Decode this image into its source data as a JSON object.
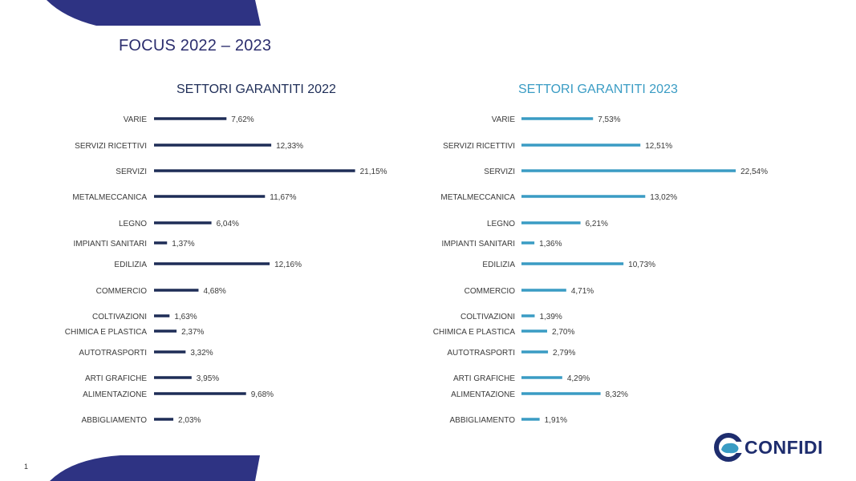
{
  "page": {
    "title": "FOCUS 2022 – 2023",
    "page_number": "1",
    "logo_text": "CONFIDI"
  },
  "colors": {
    "bar_2022": "#1e2d57",
    "bar_2023": "#3a9cc4",
    "decoration": "#2e3383"
  },
  "chart_data": [
    {
      "type": "bar",
      "orientation": "horizontal",
      "title": "SETTORI GARANTITI 2022",
      "categories": [
        "VARIE",
        "SERVIZI RICETTIVI",
        "SERVIZI",
        "METALMECCANICA",
        "LEGNO",
        "IMPIANTI SANITARI",
        "EDILIZIA",
        "COMMERCIO",
        "COLTIVAZIONI",
        "CHIMICA E PLASTICA",
        "AUTOTRASPORTI",
        "ARTI GRAFICHE",
        "ALIMENTAZIONE",
        "ABBIGLIAMENTO"
      ],
      "values": [
        7.62,
        12.33,
        21.15,
        11.67,
        6.04,
        1.37,
        12.16,
        4.68,
        1.63,
        2.37,
        3.32,
        3.95,
        9.68,
        2.03
      ],
      "labels": [
        "7,62%",
        "12,33%",
        "21,15%",
        "11,67%",
        "6,04%",
        "1,37%",
        "12,16%",
        "4,68%",
        "1,63%",
        "2,37%",
        "3,32%",
        "3,95%",
        "9,68%",
        "2,03%"
      ],
      "grid": false
    },
    {
      "type": "bar",
      "orientation": "horizontal",
      "title": "SETTORI GARANTITI 2023",
      "categories": [
        "VARIE",
        "SERVIZI RICETTIVI",
        "SERVIZI",
        "METALMECCANICA",
        "LEGNO",
        "IMPIANTI SANITARI",
        "EDILIZIA",
        "COMMERCIO",
        "COLTIVAZIONI",
        "CHIMICA E PLASTICA",
        "AUTOTRASPORTI",
        "ARTI GRAFICHE",
        "ALIMENTAZIONE",
        "ABBIGLIAMENTO"
      ],
      "values": [
        7.53,
        12.51,
        22.54,
        13.02,
        6.21,
        1.36,
        10.73,
        4.71,
        1.39,
        2.7,
        2.79,
        4.29,
        8.32,
        1.91
      ],
      "labels": [
        "7,53%",
        "12,51%",
        "22,54%",
        "13,02%",
        "6,21%",
        "1,36%",
        "10,73%",
        "4,71%",
        "1,39%",
        "2,70%",
        "2,79%",
        "4,29%",
        "8,32%",
        "1,91%"
      ],
      "grid": false
    }
  ]
}
